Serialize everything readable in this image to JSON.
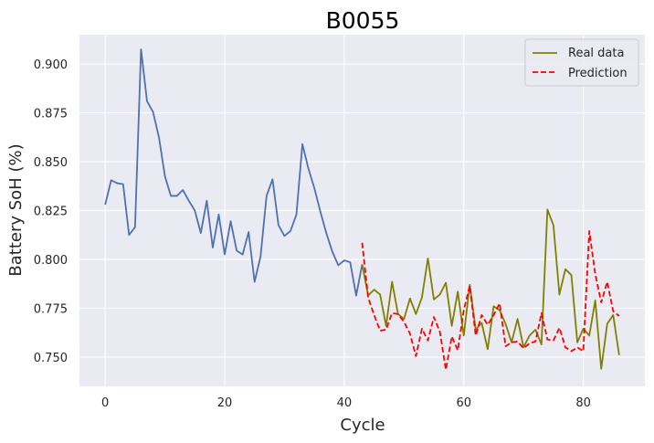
{
  "chart_data": {
    "type": "line",
    "title": "B0055",
    "xlabel": "Cycle",
    "ylabel": "Battery SoH (%)",
    "xlim": [
      -4.3,
      90.3
    ],
    "ylim": [
      0.735,
      0.915
    ],
    "x_ticks": [
      0,
      20,
      40,
      60,
      80
    ],
    "y_ticks": [
      0.75,
      0.775,
      0.8,
      0.825,
      0.85,
      0.875,
      0.9
    ],
    "x_tick_labels": [
      "0",
      "20",
      "40",
      "60",
      "80"
    ],
    "y_tick_labels": [
      "0.750",
      "0.775",
      "0.800",
      "0.825",
      "0.850",
      "0.875",
      "0.900"
    ],
    "grid": true,
    "legend_position": "top-right",
    "colors": {
      "background": "#eaeaf2",
      "grid": "#ffffff",
      "history": "#4c72b0",
      "real": "#808000",
      "prediction": "#ff0000"
    },
    "series": [
      {
        "key": "history",
        "style": "solid",
        "x_start": 0,
        "values": [
          0.828,
          0.8405,
          0.839,
          0.8385,
          0.8125,
          0.8165,
          0.9075,
          0.881,
          0.8755,
          0.8625,
          0.8425,
          0.8325,
          0.8325,
          0.8355,
          0.83,
          0.825,
          0.8135,
          0.83,
          0.806,
          0.823,
          0.8025,
          0.8195,
          0.8045,
          0.8025,
          0.814,
          0.7885,
          0.8015,
          0.8325,
          0.841,
          0.8175,
          0.812,
          0.8145,
          0.823,
          0.859,
          0.8465,
          0.8365,
          0.8245,
          0.8135,
          0.804,
          0.797,
          0.7995,
          0.7985,
          0.7815,
          0.7975
        ]
      },
      {
        "key": "real",
        "name": "Real data",
        "style": "solid",
        "x_start": 43,
        "values": [
          0.7975,
          0.7815,
          0.7845,
          0.782,
          0.766,
          0.7885,
          0.772,
          0.7695,
          0.78,
          0.772,
          0.7805,
          0.8005,
          0.7795,
          0.782,
          0.788,
          0.766,
          0.7835,
          0.761,
          0.787,
          0.764,
          0.7675,
          0.754,
          0.776,
          0.774,
          0.767,
          0.7575,
          0.7695,
          0.755,
          0.761,
          0.764,
          0.7565,
          0.8255,
          0.8175,
          0.782,
          0.795,
          0.792,
          0.7575,
          0.7645,
          0.761,
          0.779,
          0.744,
          0.767,
          0.7715,
          0.751
        ]
      },
      {
        "key": "prediction",
        "name": "Prediction",
        "style": "dashed",
        "x_start": 43,
        "values": [
          0.8085,
          0.7805,
          0.7715,
          0.7635,
          0.764,
          0.7725,
          0.772,
          0.768,
          0.762,
          0.7505,
          0.7645,
          0.7585,
          0.7705,
          0.763,
          0.7435,
          0.7605,
          0.7535,
          0.774,
          0.7865,
          0.761,
          0.7715,
          0.7665,
          0.7715,
          0.7775,
          0.7555,
          0.7575,
          0.758,
          0.7545,
          0.757,
          0.758,
          0.7725,
          0.759,
          0.7585,
          0.765,
          0.755,
          0.753,
          0.755,
          0.753,
          0.8145,
          0.7925,
          0.778,
          0.7885,
          0.7735,
          0.771
        ]
      }
    ]
  }
}
